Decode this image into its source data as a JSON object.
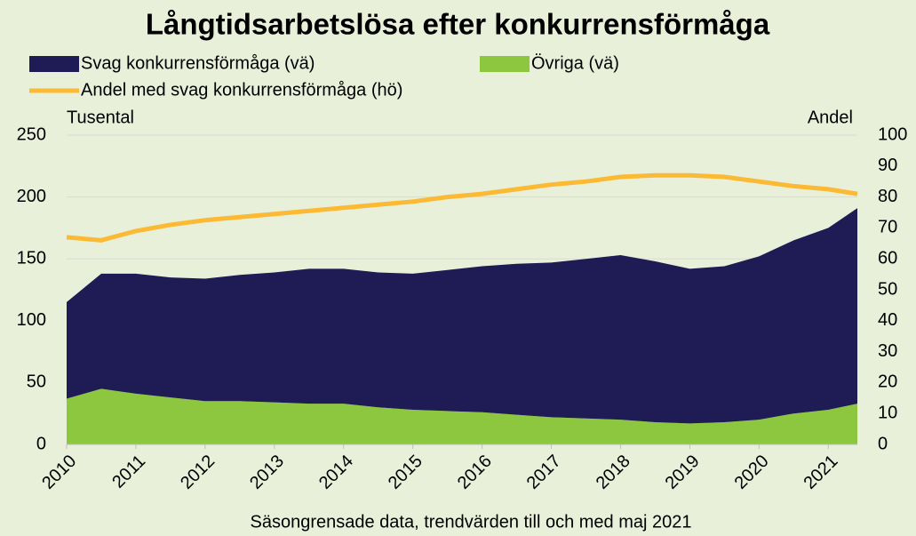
{
  "chart_data": {
    "type": "stacked-area-line",
    "title": "Långtidsarbetslösa efter konkurrensförmåga",
    "subtitle": "Säsongrensade data, trendvärden till och med maj 2021",
    "y_label": "Tusental",
    "y2_label": "Andel",
    "x": [
      2010,
      2010.5,
      2011,
      2011.5,
      2012,
      2012.5,
      2013,
      2013.5,
      2014,
      2014.5,
      2015,
      2015.5,
      2016,
      2016.5,
      2017,
      2017.5,
      2018,
      2018.5,
      2019,
      2019.5,
      2020,
      2020.5,
      2021,
      2021.42
    ],
    "xlim": [
      2010,
      2021.42
    ],
    "xticks": [
      2010,
      2011,
      2012,
      2013,
      2014,
      2015,
      2016,
      2017,
      2018,
      2019,
      2020,
      2021
    ],
    "ylim": [
      0,
      250
    ],
    "yticks": [
      0,
      50,
      100,
      150,
      200,
      250
    ],
    "y2lim": [
      0,
      100
    ],
    "y2ticks": [
      0,
      10,
      20,
      30,
      40,
      50,
      60,
      70,
      80,
      90,
      100
    ],
    "series": [
      {
        "name": "Svag konkurrensförmåga (vä)",
        "color": "#1f1b55",
        "kind": "area",
        "values": [
          78,
          93,
          97,
          97,
          99,
          102,
          105,
          109,
          109,
          109,
          110,
          114,
          118,
          122,
          125,
          129,
          133,
          130,
          125,
          126,
          132,
          140,
          147,
          158
        ]
      },
      {
        "name": "Övriga  (vä)",
        "color": "#8dc63f",
        "kind": "area",
        "values": [
          37,
          45,
          41,
          38,
          35,
          35,
          34,
          33,
          33,
          30,
          28,
          27,
          26,
          24,
          22,
          21,
          20,
          18,
          17,
          18,
          20,
          25,
          28,
          33
        ]
      },
      {
        "name": "Andel med svag konkurrensförmåga (hö)",
        "color": "#fbb934",
        "kind": "line",
        "axis": "y2",
        "values": [
          67,
          66,
          69,
          71,
          72.5,
          73.5,
          74.5,
          75.5,
          76.5,
          77.5,
          78.5,
          80,
          81,
          82.5,
          84,
          85,
          86.5,
          87,
          87,
          86.5,
          85,
          83.5,
          82.5,
          81
        ]
      }
    ]
  }
}
